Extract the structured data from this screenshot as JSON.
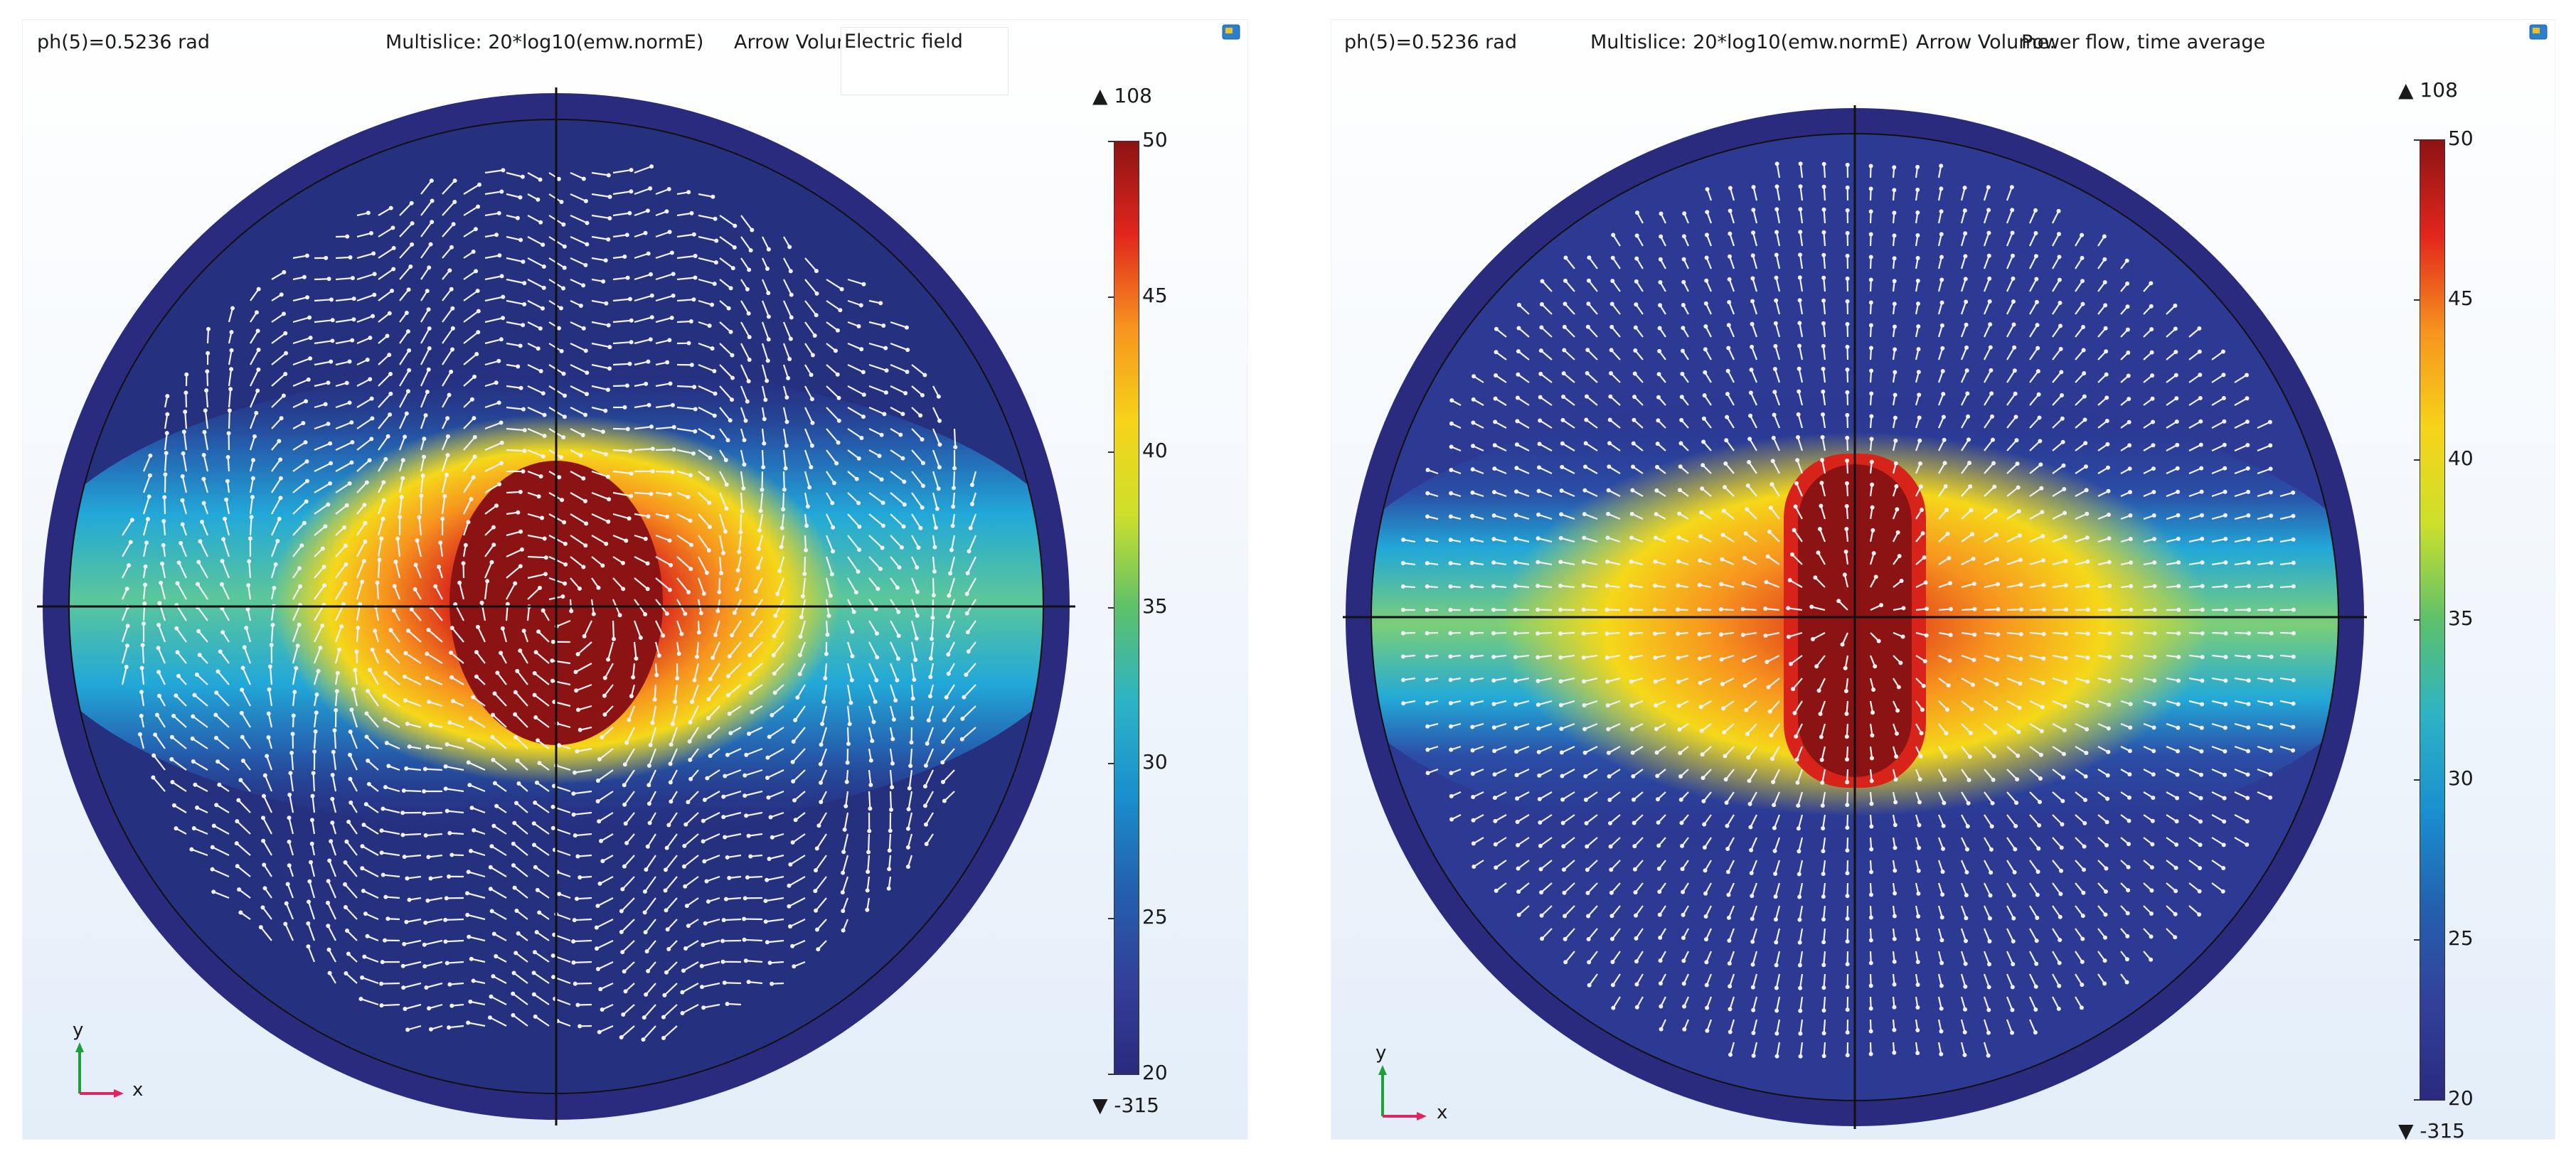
{
  "colors": {
    "disk_outer": "#2a2a7e",
    "crosshair": "#111111",
    "arrow": "#f1f1f1",
    "axis_y": "#1f9f3a",
    "axis_x": "#e0245e"
  },
  "icons": {
    "dock": "window-dock-icon"
  },
  "panels": [
    {
      "parameter": "ph(5)=0.5236 rad",
      "expression": "Multislice: 20*log10(emw.normE)",
      "arrow_prefix": "Arrow Volume:",
      "arrow_label": "Electric field",
      "colorbar": {
        "max_label": "▲ 108",
        "min_label": "▼ -315",
        "ticks": [
          "50",
          "45",
          "40",
          "35",
          "30",
          "25",
          "20"
        ]
      },
      "axes": {
        "x": "x",
        "y": "y"
      }
    },
    {
      "parameter": "ph(5)=0.5236 rad",
      "expression": "Multislice: 20*log10(emw.normE)",
      "arrow_prefix": "Arrow Volume:",
      "arrow_label": "Power flow, time average",
      "colorbar": {
        "max_label": "▲ 108",
        "min_label": "▼ -315",
        "ticks": [
          "50",
          "45",
          "40",
          "35",
          "30",
          "25",
          "20"
        ]
      },
      "axes": {
        "x": "x",
        "y": "y"
      }
    }
  ]
}
